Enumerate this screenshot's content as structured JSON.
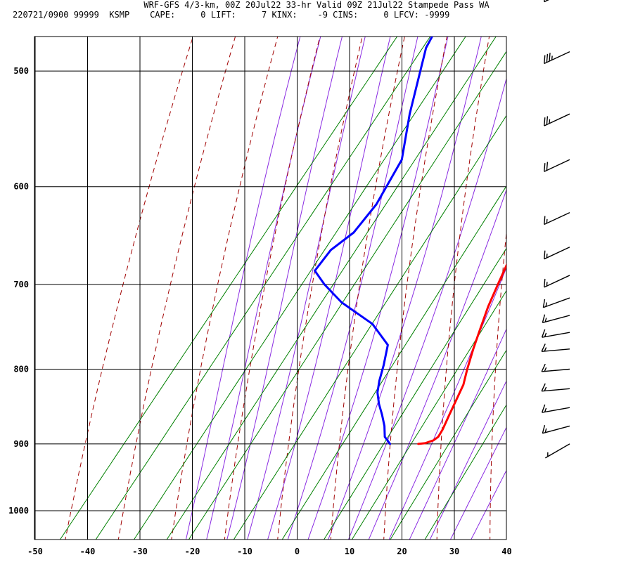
{
  "header": {
    "title": "WRF-GFS 4/3-km, 00Z 20Jul22 33-hr Valid 09Z 21Jul22 Stampede Pass WA",
    "stats": "220721/0900 99999  KSMP    CAPE:     0 LIFT:     7 KINX:    -9 CINS:     0 LFCV: -9999"
  },
  "chart_data": {
    "type": "line",
    "title": "Skew-T log-P sounding",
    "xlabel": "Temperature (C)",
    "ylabel": "Pressure (hPa)",
    "xlim": [
      -50,
      40
    ],
    "ylim": [
      1040,
      400
    ],
    "x_ticks": [
      "-50",
      "-40",
      "-30",
      "-20",
      "-10",
      "0",
      "10",
      "20",
      "30",
      "40"
    ],
    "y_ticks": [
      "400",
      "500",
      "600",
      "700",
      "800",
      "900",
      "1000"
    ],
    "x_tick_values": [
      -50,
      -40,
      -30,
      -20,
      -10,
      0,
      10,
      20,
      30,
      40
    ],
    "y_tick_values": [
      400,
      500,
      600,
      700,
      800,
      900,
      1000
    ],
    "colors": {
      "temperature": "#ff0000",
      "dewpoint": "#0000ff",
      "dry_adiabat": "#a00000",
      "moist_adiabat": "#8a2be2",
      "mixing_ratio": "#008000",
      "grid": "#000000"
    },
    "series": [
      {
        "name": "Temperature",
        "points": [
          [
            13.6,
            900
          ],
          [
            14.8,
            899
          ],
          [
            16.0,
            895
          ],
          [
            16.4,
            890
          ],
          [
            16.2,
            880
          ],
          [
            15.4,
            860
          ],
          [
            14.6,
            840
          ],
          [
            13.8,
            820
          ],
          [
            12.3,
            800
          ],
          [
            10.6,
            775
          ],
          [
            9.0,
            750
          ],
          [
            7.4,
            725
          ],
          [
            6.1,
            700
          ],
          [
            4.8,
            675
          ],
          [
            3.1,
            650
          ],
          [
            1.2,
            625
          ],
          [
            -0.5,
            600
          ],
          [
            -3.0,
            575
          ],
          [
            -5.7,
            550
          ],
          [
            -8.7,
            525
          ],
          [
            -11.6,
            500
          ],
          [
            -14.4,
            475
          ],
          [
            -18.3,
            440
          ]
        ]
      },
      {
        "name": "Dewpoint",
        "points": [
          [
            8.2,
            900
          ],
          [
            7.2,
            895
          ],
          [
            6.2,
            890
          ],
          [
            4.6,
            875
          ],
          [
            2.6,
            860
          ],
          [
            0.4,
            845
          ],
          [
            -1.5,
            830
          ],
          [
            -2.8,
            815
          ],
          [
            -4.2,
            795
          ],
          [
            -6.3,
            770
          ],
          [
            -12.2,
            745
          ],
          [
            -21.2,
            720
          ],
          [
            -27.0,
            700
          ],
          [
            -30.8,
            685
          ],
          [
            -30.7,
            663
          ],
          [
            -28.8,
            645
          ],
          [
            -28.5,
            617
          ],
          [
            -30.0,
            575
          ],
          [
            -35.0,
            535
          ],
          [
            -41.3,
            482
          ],
          [
            -43.6,
            440
          ]
        ]
      }
    ],
    "dry_adiabat_theta_K": [
      230,
      240,
      250,
      260,
      270,
      280,
      290,
      300,
      310,
      320,
      330,
      340,
      350,
      360,
      370,
      380,
      390,
      400,
      410,
      420,
      430,
      440,
      450
    ],
    "moist_adiabat_thetaw_C": [
      -20,
      -16,
      -12,
      -8,
      -4,
      0,
      4,
      8,
      12,
      16,
      20,
      24,
      28,
      32,
      36
    ],
    "mixing_ratio_gkg": [
      0.1,
      0.2,
      0.4,
      0.7,
      1,
      2,
      4,
      7,
      10,
      16,
      24
    ],
    "wind_barbs": [
      {
        "pressure": 440,
        "direction_deg": 245,
        "speed_kt": 35
      },
      {
        "pressure": 485,
        "direction_deg": 245,
        "speed_kt": 35
      },
      {
        "pressure": 535,
        "direction_deg": 245,
        "speed_kt": 25
      },
      {
        "pressure": 575,
        "direction_deg": 245,
        "speed_kt": 20
      },
      {
        "pressure": 625,
        "direction_deg": 245,
        "speed_kt": 15
      },
      {
        "pressure": 660,
        "direction_deg": 245,
        "speed_kt": 15
      },
      {
        "pressure": 690,
        "direction_deg": 245,
        "speed_kt": 15
      },
      {
        "pressure": 715,
        "direction_deg": 250,
        "speed_kt": 15
      },
      {
        "pressure": 735,
        "direction_deg": 255,
        "speed_kt": 15
      },
      {
        "pressure": 755,
        "direction_deg": 260,
        "speed_kt": 15
      },
      {
        "pressure": 775,
        "direction_deg": 265,
        "speed_kt": 15
      },
      {
        "pressure": 800,
        "direction_deg": 265,
        "speed_kt": 15
      },
      {
        "pressure": 825,
        "direction_deg": 265,
        "speed_kt": 15
      },
      {
        "pressure": 850,
        "direction_deg": 260,
        "speed_kt": 15
      },
      {
        "pressure": 875,
        "direction_deg": 255,
        "speed_kt": 15
      },
      {
        "pressure": 900,
        "direction_deg": 240,
        "speed_kt": 5
      }
    ]
  }
}
